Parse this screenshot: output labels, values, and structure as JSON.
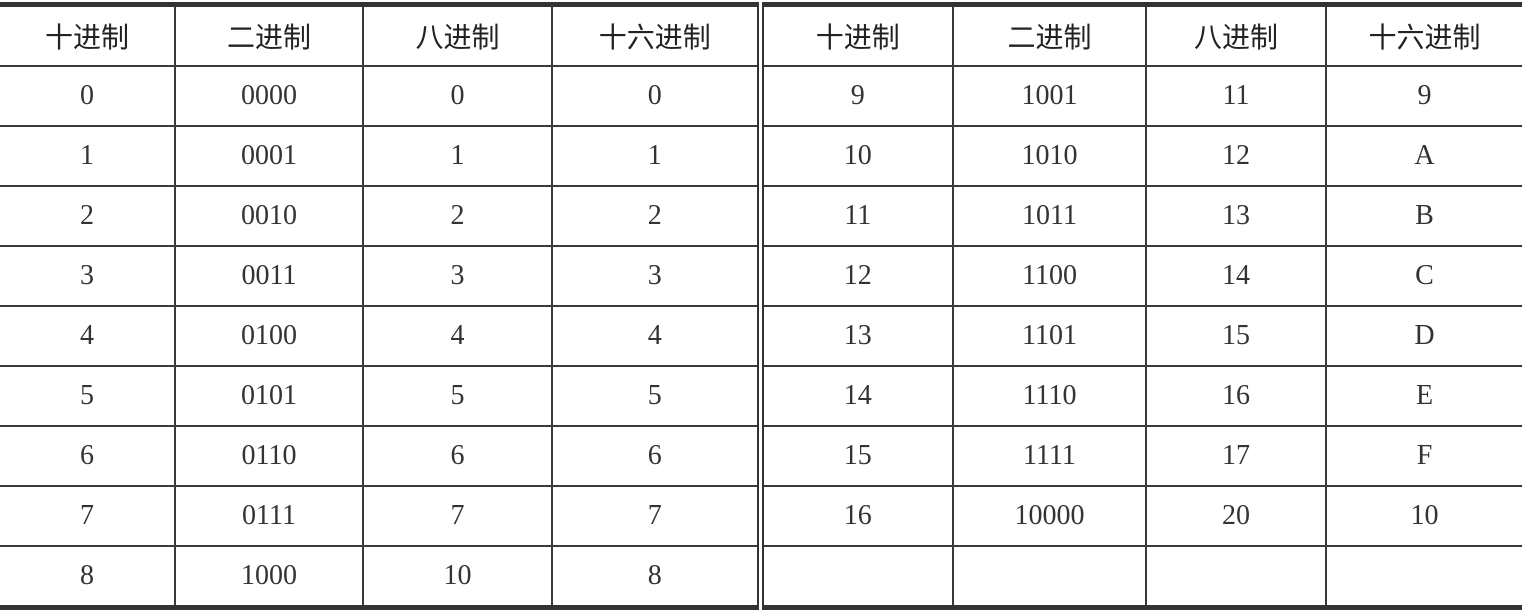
{
  "headers": [
    "十进制",
    "二进制",
    "八进制",
    "十六进制",
    "十进制",
    "二进制",
    "八进制",
    "十六进制"
  ],
  "rows": [
    [
      "0",
      "0000",
      "0",
      "0",
      "9",
      "1001",
      "11",
      "9"
    ],
    [
      "1",
      "0001",
      "1",
      "1",
      "10",
      "1010",
      "12",
      "A"
    ],
    [
      "2",
      "0010",
      "2",
      "2",
      "11",
      "1011",
      "13",
      "B"
    ],
    [
      "3",
      "0011",
      "3",
      "3",
      "12",
      "1100",
      "14",
      "C"
    ],
    [
      "4",
      "0100",
      "4",
      "4",
      "13",
      "1101",
      "15",
      "D"
    ],
    [
      "5",
      "0101",
      "5",
      "5",
      "14",
      "1110",
      "16",
      "E"
    ],
    [
      "6",
      "0110",
      "6",
      "6",
      "15",
      "1111",
      "17",
      "F"
    ],
    [
      "7",
      "0111",
      "7",
      "7",
      "16",
      "10000",
      "20",
      "10"
    ],
    [
      "8",
      "1000",
      "10",
      "8",
      "",
      "",
      "",
      ""
    ]
  ]
}
